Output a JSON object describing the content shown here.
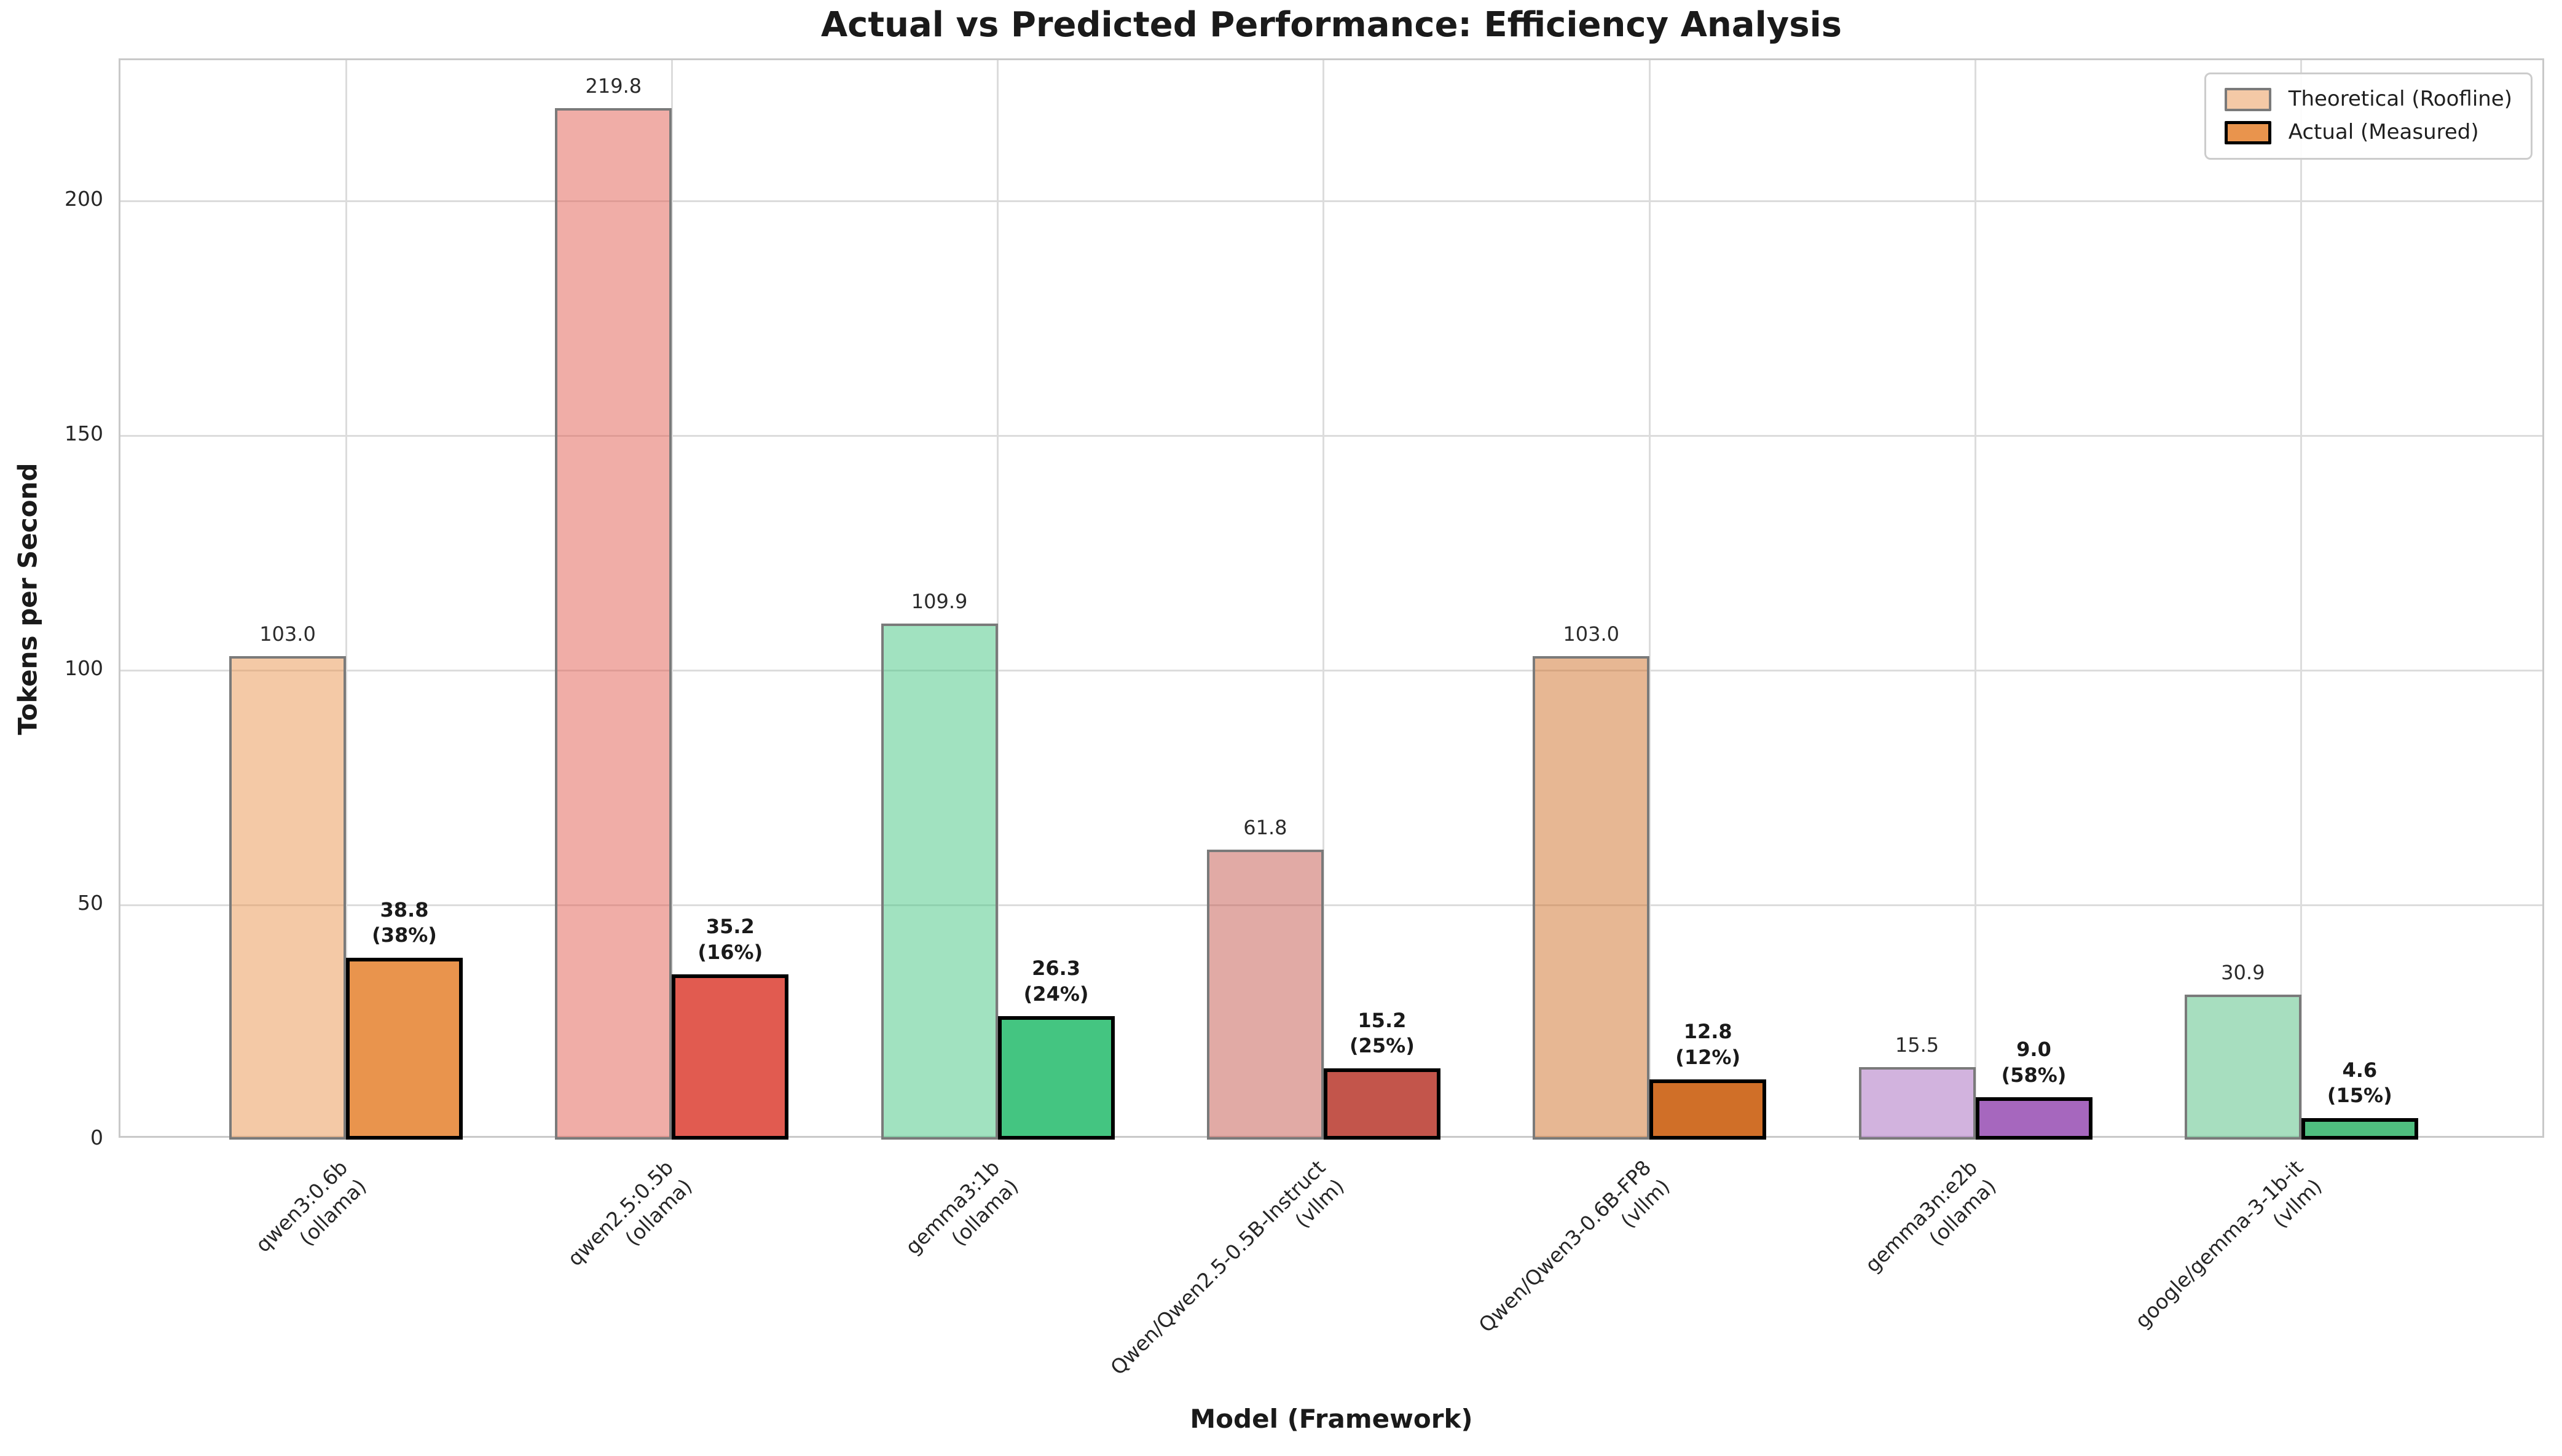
{
  "chart_data": {
    "type": "bar",
    "title": "Actual vs Predicted Performance: Efficiency Analysis",
    "xlabel": "Model (Framework)",
    "ylabel": "Tokens per Second",
    "ylim": [
      0,
      230
    ],
    "yticks": [
      0,
      50,
      100,
      150,
      200
    ],
    "grid": true,
    "legend": {
      "position": "upper right",
      "entries": [
        "Theoretical (Roofline)",
        "Actual (Measured)"
      ]
    },
    "categories": [
      {
        "model": "qwen3:0.6b",
        "framework": "(ollama)"
      },
      {
        "model": "qwen2.5:0.5b",
        "framework": "(ollama)"
      },
      {
        "model": "gemma3:1b",
        "framework": "(ollama)"
      },
      {
        "model": "Qwen/Qwen2.5-0.5B-Instruct",
        "framework": "(vllm)"
      },
      {
        "model": "Qwen/Qwen3-0.6B-FP8",
        "framework": "(vllm)"
      },
      {
        "model": "gemma3n:e2b",
        "framework": "(ollama)"
      },
      {
        "model": "google/gemma-3-1b-it",
        "framework": "(vllm)"
      }
    ],
    "series": [
      {
        "name": "Theoretical (Roofline)",
        "values": [
          103.0,
          219.8,
          109.9,
          61.8,
          103.0,
          15.5,
          30.9
        ],
        "labels": [
          "103.0",
          "219.8",
          "109.9",
          "61.8",
          "103.0",
          "15.5",
          "30.9"
        ]
      },
      {
        "name": "Actual (Measured)",
        "values": [
          38.8,
          35.2,
          26.3,
          15.2,
          12.8,
          9.0,
          4.6
        ],
        "labels_line1": [
          "38.8",
          "35.2",
          "26.3",
          "15.2",
          "12.8",
          "9.0",
          "4.6"
        ],
        "labels_line2": [
          "(38%)",
          "(16%)",
          "(24%)",
          "(25%)",
          "(12%)",
          "(58%)",
          "(15%)"
        ],
        "efficiency_pct": [
          38,
          16,
          24,
          25,
          12,
          58,
          15
        ]
      }
    ],
    "colors": {
      "per_model": [
        "#E9944D",
        "#E15B50",
        "#44C581",
        "#C3554B",
        "#D06F28",
        "#A667BE",
        "#4FBE7F"
      ],
      "theoretical_alpha": 0.5,
      "theoretical_border": "#7A7A7A",
      "actual_border": "#000000",
      "grid": "#DCDCDC",
      "spine": "#C9C9C9",
      "text": "#262626"
    }
  }
}
